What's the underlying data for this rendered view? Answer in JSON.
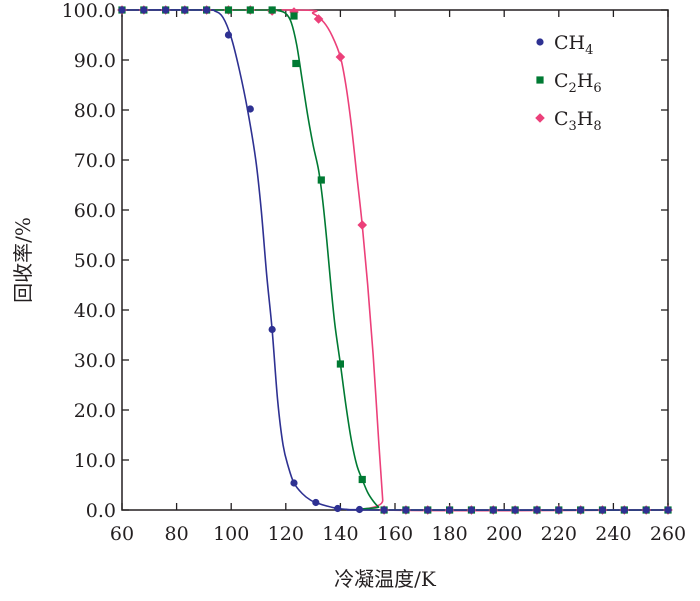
{
  "chart_data": {
    "type": "scatter",
    "xlabel": "冷凝温度/K",
    "ylabel": "回收率/%",
    "xlim": [
      60,
      260
    ],
    "ylim": [
      0,
      100
    ],
    "x_ticks": [
      60,
      80,
      100,
      120,
      140,
      160,
      180,
      200,
      220,
      240,
      260
    ],
    "y_ticks": [
      "0.0",
      "10.0",
      "20.0",
      "30.0",
      "40.0",
      "50.0",
      "60.0",
      "70.0",
      "80.0",
      "90.0",
      "100.0"
    ],
    "legend_position": "top-right",
    "series": [
      {
        "name": "CH4",
        "name_base": "CH",
        "name_sub": "4",
        "color": "#2e3192",
        "marker": "circle",
        "points": [
          [
            60,
            100
          ],
          [
            68,
            100
          ],
          [
            76,
            100
          ],
          [
            83,
            100
          ],
          [
            91,
            100
          ],
          [
            99,
            95.0
          ],
          [
            107,
            80.2
          ],
          [
            115,
            36.1
          ],
          [
            123,
            5.4
          ],
          [
            131,
            1.5
          ],
          [
            139,
            0.3
          ],
          [
            147,
            0.1
          ],
          [
            156,
            0
          ],
          [
            164,
            0
          ],
          [
            172,
            0
          ],
          [
            180,
            0
          ],
          [
            188,
            0
          ],
          [
            196,
            0
          ],
          [
            204,
            0
          ],
          [
            212,
            0
          ],
          [
            220,
            0
          ],
          [
            228,
            0
          ],
          [
            236,
            0
          ],
          [
            244,
            0
          ],
          [
            252,
            0
          ],
          [
            260,
            0
          ]
        ],
        "curve": [
          [
            60,
            100
          ],
          [
            90,
            100
          ],
          [
            94,
            99.8
          ],
          [
            97,
            98.5
          ],
          [
            100,
            94.5
          ],
          [
            103,
            88
          ],
          [
            106,
            80
          ],
          [
            109,
            70
          ],
          [
            111,
            60
          ],
          [
            113,
            47
          ],
          [
            115,
            36
          ],
          [
            117,
            22
          ],
          [
            119,
            13
          ],
          [
            121,
            8.5
          ],
          [
            123,
            5.4
          ],
          [
            126,
            3.3
          ],
          [
            129,
            2.0
          ],
          [
            132,
            1.3
          ],
          [
            135,
            0.8
          ],
          [
            139,
            0.3
          ],
          [
            143,
            0.1
          ],
          [
            147,
            0.05
          ],
          [
            152,
            0
          ],
          [
            260,
            0
          ]
        ]
      },
      {
        "name": "C2H6",
        "name_base": "C",
        "name_sub": "2",
        "name_mid": "H",
        "name_sub2": "6",
        "color": "#007a33",
        "marker": "square",
        "points": [
          [
            60,
            100
          ],
          [
            68,
            100
          ],
          [
            76,
            100
          ],
          [
            83,
            100
          ],
          [
            91,
            100
          ],
          [
            99,
            100
          ],
          [
            107,
            100
          ],
          [
            115,
            100
          ],
          [
            123,
            98.8
          ],
          [
            123.7,
            89.3
          ],
          [
            133,
            66.0
          ],
          [
            140,
            29.2
          ],
          [
            148,
            6.1
          ],
          [
            156,
            0
          ],
          [
            164,
            0
          ],
          [
            172,
            0
          ],
          [
            180,
            0
          ],
          [
            188,
            0
          ],
          [
            196,
            0
          ],
          [
            204,
            0
          ],
          [
            212,
            0
          ],
          [
            220,
            0
          ],
          [
            228,
            0
          ],
          [
            236,
            0
          ],
          [
            244,
            0
          ],
          [
            252,
            0
          ],
          [
            260,
            0
          ]
        ],
        "curve": [
          [
            60,
            100
          ],
          [
            113,
            100
          ],
          [
            117,
            99.9
          ],
          [
            120,
            99.3
          ],
          [
            122,
            97.5
          ],
          [
            124,
            93
          ],
          [
            126,
            86
          ],
          [
            128,
            79
          ],
          [
            130,
            73
          ],
          [
            132,
            68
          ],
          [
            133.5,
            62
          ],
          [
            135,
            54
          ],
          [
            136.5,
            45
          ],
          [
            138,
            37
          ],
          [
            140,
            29.2
          ],
          [
            142,
            21
          ],
          [
            144,
            14
          ],
          [
            146,
            9
          ],
          [
            148,
            6.1
          ],
          [
            150,
            3.5
          ],
          [
            152,
            1.8
          ],
          [
            154,
            0.6
          ],
          [
            156,
            0
          ],
          [
            260,
            0
          ]
        ]
      },
      {
        "name": "C3H8",
        "name_base": "C",
        "name_sub": "3",
        "name_mid": "H",
        "name_sub2": "8",
        "color": "#ec407a",
        "marker": "diamond",
        "points": [
          [
            60,
            100
          ],
          [
            68,
            100
          ],
          [
            76,
            100
          ],
          [
            83,
            100
          ],
          [
            91,
            100
          ],
          [
            99,
            100
          ],
          [
            107,
            100
          ],
          [
            115,
            99.8
          ],
          [
            123,
            99.6
          ],
          [
            132,
            98.2
          ],
          [
            140,
            90.6
          ],
          [
            148,
            57.0
          ],
          [
            156,
            0
          ],
          [
            164,
            0
          ],
          [
            172,
            0
          ],
          [
            180,
            0
          ],
          [
            188,
            0
          ],
          [
            196,
            0
          ],
          [
            204,
            0
          ],
          [
            212,
            0
          ],
          [
            220,
            0
          ],
          [
            228,
            0
          ],
          [
            236,
            0
          ],
          [
            244,
            0
          ],
          [
            252,
            0
          ],
          [
            260,
            0
          ]
        ],
        "curve": [
          [
            60,
            100
          ],
          [
            125,
            100
          ],
          [
            130,
            99.3
          ],
          [
            134,
            97.5
          ],
          [
            137,
            94.8
          ],
          [
            140,
            90.6
          ],
          [
            142,
            85
          ],
          [
            144,
            77
          ],
          [
            146,
            67
          ],
          [
            148,
            57
          ],
          [
            150,
            45
          ],
          [
            152,
            31
          ],
          [
            154,
            14
          ],
          [
            155.5,
            2
          ],
          [
            156,
            0
          ],
          [
            260,
            0
          ]
        ]
      }
    ]
  }
}
